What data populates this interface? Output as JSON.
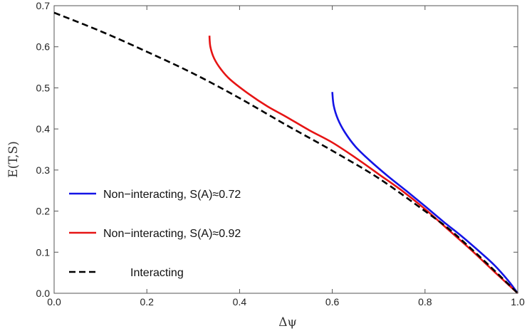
{
  "chart_data": {
    "type": "line",
    "xlabel": "Δψ",
    "ylabel": "E(T,S)",
    "xlim": [
      0.0,
      1.0
    ],
    "ylim": [
      0.0,
      0.7
    ],
    "xticks": [
      "0.0",
      "0.2",
      "0.4",
      "0.6",
      "0.8",
      "1.0"
    ],
    "xtick_values": [
      0.0,
      0.2,
      0.4,
      0.6,
      0.8,
      1.0
    ],
    "yticks": [
      "0.0",
      "0.1",
      "0.2",
      "0.3",
      "0.4",
      "0.5",
      "0.6",
      "0.7"
    ],
    "ytick_values": [
      0.0,
      0.1,
      0.2,
      0.3,
      0.4,
      0.5,
      0.6,
      0.7
    ],
    "grid": false,
    "legend_position": "lower-left",
    "series": [
      {
        "name": "Non−interacting, S(A)≈0.72",
        "color": "#1414e6",
        "dash": "solid",
        "x": [
          0.6,
          0.603,
          0.612,
          0.627,
          0.65,
          0.68,
          0.72,
          0.76,
          0.8,
          0.84,
          0.88,
          0.92,
          0.95,
          0.98,
          1.0
        ],
        "y": [
          0.49,
          0.457,
          0.424,
          0.392,
          0.357,
          0.324,
          0.285,
          0.249,
          0.212,
          0.174,
          0.138,
          0.099,
          0.068,
          0.03,
          0.0
        ]
      },
      {
        "name": "Non−interacting, S(A)≈0.92",
        "color": "#e61414",
        "dash": "solid",
        "x": [
          0.335,
          0.337,
          0.345,
          0.36,
          0.38,
          0.42,
          0.46,
          0.5,
          0.55,
          0.6,
          0.65,
          0.7,
          0.75,
          0.8,
          0.85,
          0.9,
          0.95,
          1.0
        ],
        "y": [
          0.627,
          0.6,
          0.572,
          0.545,
          0.52,
          0.485,
          0.455,
          0.43,
          0.397,
          0.367,
          0.33,
          0.29,
          0.25,
          0.205,
          0.155,
          0.105,
          0.052,
          0.0
        ]
      },
      {
        "name": "Interacting",
        "color": "#000000",
        "dash": "dashed",
        "x": [
          0.0,
          0.1,
          0.2,
          0.3,
          0.4,
          0.5,
          0.6,
          0.7,
          0.8,
          0.85,
          0.9,
          0.95,
          1.0
        ],
        "y": [
          0.683,
          0.638,
          0.588,
          0.535,
          0.475,
          0.41,
          0.347,
          0.28,
          0.2,
          0.158,
          0.108,
          0.055,
          0.0
        ]
      }
    ]
  }
}
